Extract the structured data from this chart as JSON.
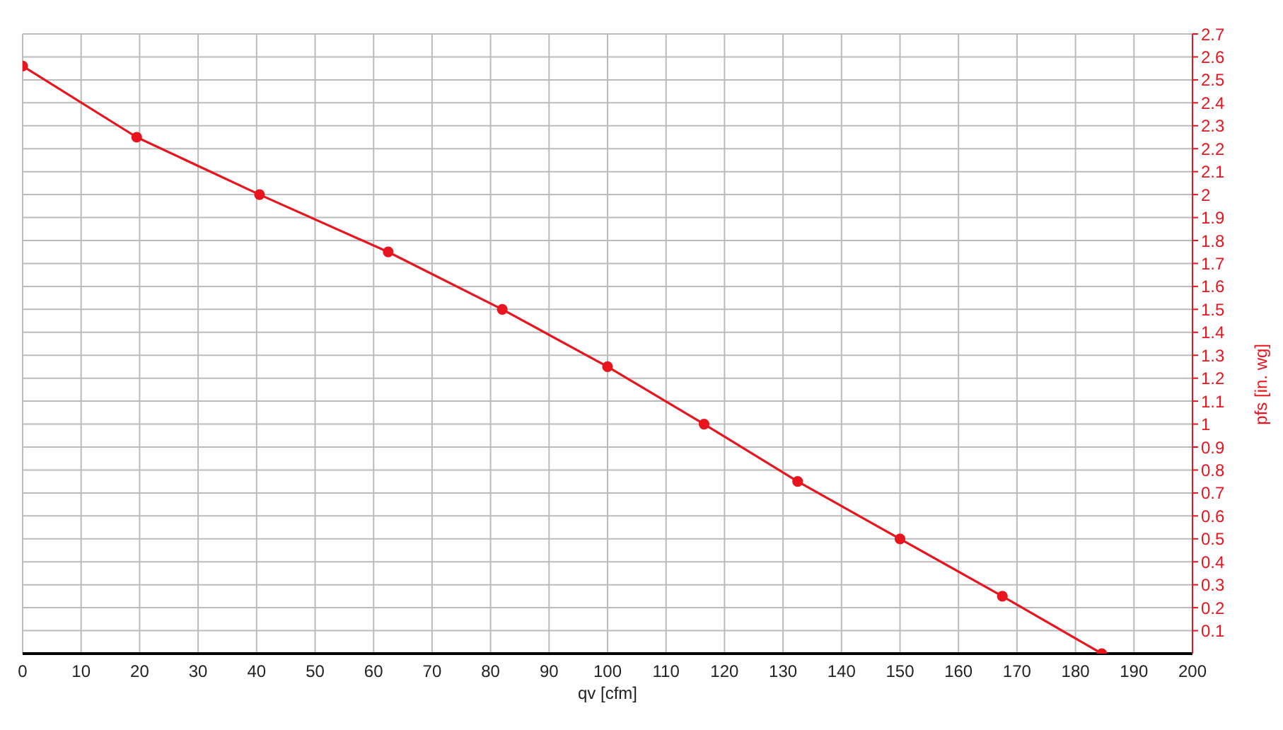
{
  "chart_data": {
    "type": "line",
    "xlabel": "qv [cfm]",
    "ylabel": "pfs [in. wg]",
    "x": [
      0,
      19.5,
      40.5,
      62.5,
      82,
      100,
      116.5,
      132.5,
      150,
      167.5,
      184.5
    ],
    "series": [
      {
        "color": "#e8141e",
        "values": [
          2.56,
          2.25,
          2.0,
          1.75,
          1.5,
          1.25,
          1.0,
          0.75,
          0.5,
          0.25,
          0.0
        ]
      }
    ],
    "xlim": [
      0,
      200
    ],
    "xticks": [
      0,
      10,
      20,
      30,
      40,
      50,
      60,
      70,
      80,
      90,
      100,
      110,
      120,
      130,
      140,
      150,
      160,
      170,
      180,
      190,
      200
    ],
    "ylim": [
      0,
      2.7
    ],
    "yticks": [
      0.1,
      0.2,
      0.3,
      0.4,
      0.5,
      0.6,
      0.7,
      0.8,
      0.9,
      1,
      1.1,
      1.2,
      1.3,
      1.4,
      1.5,
      1.6,
      1.7,
      1.8,
      1.9,
      2,
      2.1,
      2.2,
      2.3,
      2.4,
      2.5,
      2.6,
      2.7
    ],
    "grid": true,
    "marker": "circle",
    "line_style": "solid",
    "legend": false
  }
}
